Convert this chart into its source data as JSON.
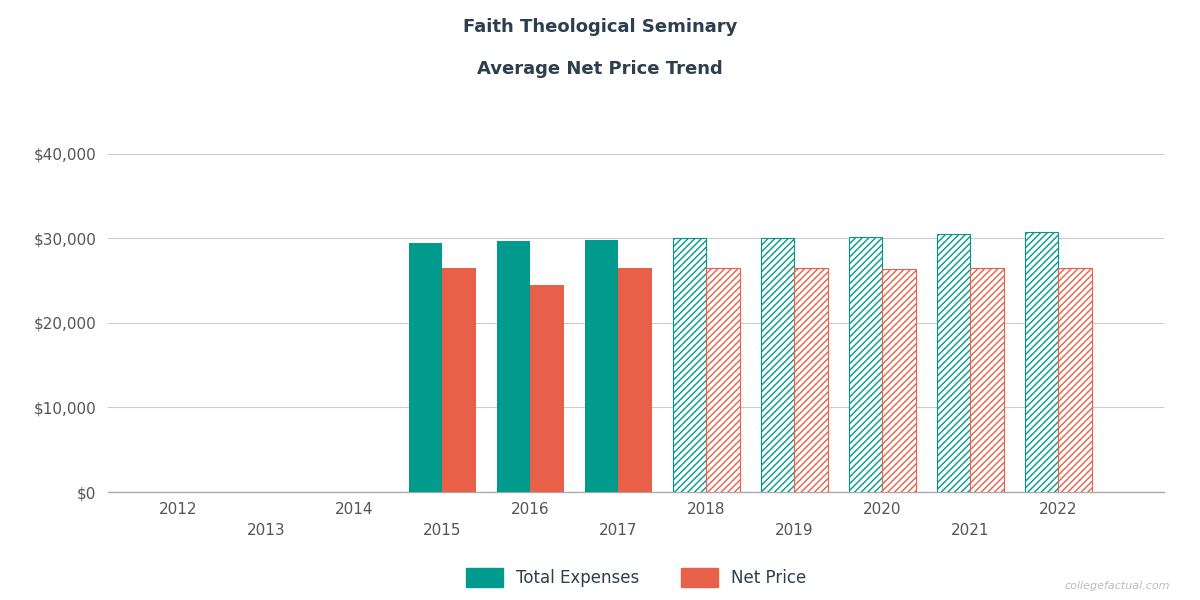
{
  "title_line1": "Faith Theological Seminary",
  "title_line2": "Average Net Price Trend",
  "years": [
    2015,
    2016,
    2017,
    2018,
    2019,
    2020,
    2021,
    2022
  ],
  "total_expenses": [
    29400,
    29700,
    29800,
    30000,
    30100,
    30200,
    30500,
    30700
  ],
  "net_price": [
    26500,
    24500,
    26500,
    26500,
    26500,
    26400,
    26500,
    26500
  ],
  "solid_years": [
    2015,
    2016,
    2017
  ],
  "hatched_years": [
    2018,
    2019,
    2020,
    2021,
    2022
  ],
  "teal_color": "#009B8D",
  "salmon_color": "#E8604A",
  "background_color": "#ffffff",
  "grid_color": "#cccccc",
  "title_color": "#2d3e4e",
  "tick_label_color": "#555555",
  "ylim": [
    0,
    44000
  ],
  "yticks": [
    0,
    10000,
    20000,
    30000,
    40000
  ],
  "x_major_ticks": [
    2012,
    2014,
    2016,
    2018,
    2020,
    2022
  ],
  "x_minor_ticks": [
    2013,
    2015,
    2017,
    2019,
    2021
  ],
  "watermark": "collegefactual.com",
  "bar_width": 0.38,
  "legend_label_expenses": "Total Expenses",
  "legend_label_price": "Net Price"
}
